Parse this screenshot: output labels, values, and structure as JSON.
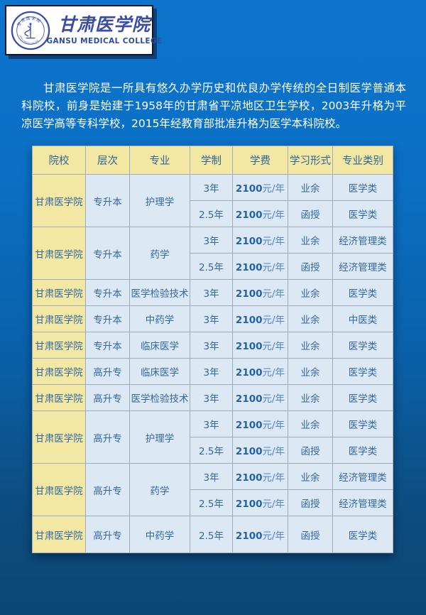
{
  "header": {
    "college_name_zh": "甘肃医学院",
    "college_name_en": "GANSU MEDICAL COLLEGE",
    "seal_icon": "college-seal-icon"
  },
  "intro_text": "甘肃医学院是一所具有悠久办学历史和优良办学传统的全日制医学普通本科院校，前身是始建于1958年的甘肃省平凉地区卫生学校，2003年升格为平凉医学高等专科学校，2015年经教育部批准升格为医学本科院校。",
  "table": {
    "columns": [
      "院校",
      "层次",
      "专业",
      "学制",
      "学费",
      "学习形式",
      "专业类别"
    ],
    "programs": [
      {
        "college": "甘肃医学院",
        "level": "专升本",
        "major": "护理学",
        "options": [
          {
            "duration": "3年",
            "tuition_amount": "2100",
            "tuition_unit": "元/年",
            "study_format": "业余",
            "category": "医学类"
          },
          {
            "duration": "2.5年",
            "tuition_amount": "2100",
            "tuition_unit": "元/年",
            "study_format": "函授",
            "category": "医学类"
          }
        ]
      },
      {
        "college": "甘肃医学院",
        "level": "专升本",
        "major": "药学",
        "options": [
          {
            "duration": "3年",
            "tuition_amount": "2100",
            "tuition_unit": "元/年",
            "study_format": "业余",
            "category": "经济管理类"
          },
          {
            "duration": "2.5年",
            "tuition_amount": "2100",
            "tuition_unit": "元/年",
            "study_format": "函授",
            "category": "经济管理类"
          }
        ]
      },
      {
        "college": "甘肃医学院",
        "level": "专升本",
        "major": "医学检验技术",
        "options": [
          {
            "duration": "3年",
            "tuition_amount": "2100",
            "tuition_unit": "元/年",
            "study_format": "业余",
            "category": "医学类"
          }
        ]
      },
      {
        "college": "甘肃医学院",
        "level": "专升本",
        "major": "中药学",
        "options": [
          {
            "duration": "3年",
            "tuition_amount": "2100",
            "tuition_unit": "元/年",
            "study_format": "业余",
            "category": "中医类"
          }
        ]
      },
      {
        "college": "甘肃医学院",
        "level": "专升本",
        "major": "临床医学",
        "options": [
          {
            "duration": "3年",
            "tuition_amount": "2100",
            "tuition_unit": "元/年",
            "study_format": "业余",
            "category": "医学类"
          }
        ]
      },
      {
        "college": "甘肃医学院",
        "level": "高升专",
        "major": "临床医学",
        "options": [
          {
            "duration": "3年",
            "tuition_amount": "2100",
            "tuition_unit": "元/年",
            "study_format": "业余",
            "category": "医学类"
          }
        ]
      },
      {
        "college": "甘肃医学院",
        "level": "高升专",
        "major": "医学检验技术",
        "options": [
          {
            "duration": "3年",
            "tuition_amount": "2100",
            "tuition_unit": "元/年",
            "study_format": "业余",
            "category": "医学类"
          }
        ]
      },
      {
        "college": "甘肃医学院",
        "level": "高升专",
        "major": "护理学",
        "options": [
          {
            "duration": "3年",
            "tuition_amount": "2100",
            "tuition_unit": "元/年",
            "study_format": "业余",
            "category": "医学类"
          },
          {
            "duration": "2.5年",
            "tuition_amount": "2100",
            "tuition_unit": "元/年",
            "study_format": "函授",
            "category": "医学类"
          }
        ]
      },
      {
        "college": "甘肃医学院",
        "level": "高升专",
        "major": "药学",
        "options": [
          {
            "duration": "3年",
            "tuition_amount": "2100",
            "tuition_unit": "元/年",
            "study_format": "业余",
            "category": "经济管理类"
          },
          {
            "duration": "2.5年",
            "tuition_amount": "2100",
            "tuition_unit": "元/年",
            "study_format": "函授",
            "category": "经济管理类"
          }
        ]
      },
      {
        "college": "甘肃医学院",
        "level": "高升专",
        "major": "中药学",
        "options": [
          {
            "duration": "2.5年",
            "tuition_amount": "2100",
            "tuition_unit": "元/年",
            "study_format": "函授",
            "category": "医学类"
          }
        ]
      }
    ]
  },
  "colors": {
    "background_top": "#0c74cb",
    "background_bottom": "#0c4673",
    "header_cell_bg": "#f2e8a4",
    "data_cell_bg": "#dce8f4",
    "table_text": "#33689f",
    "tuition_amount_text": "#2263a8",
    "cell_border": "#9fadba",
    "paragraph_text": "#ffffff",
    "logo_text": "#3b4da2"
  }
}
